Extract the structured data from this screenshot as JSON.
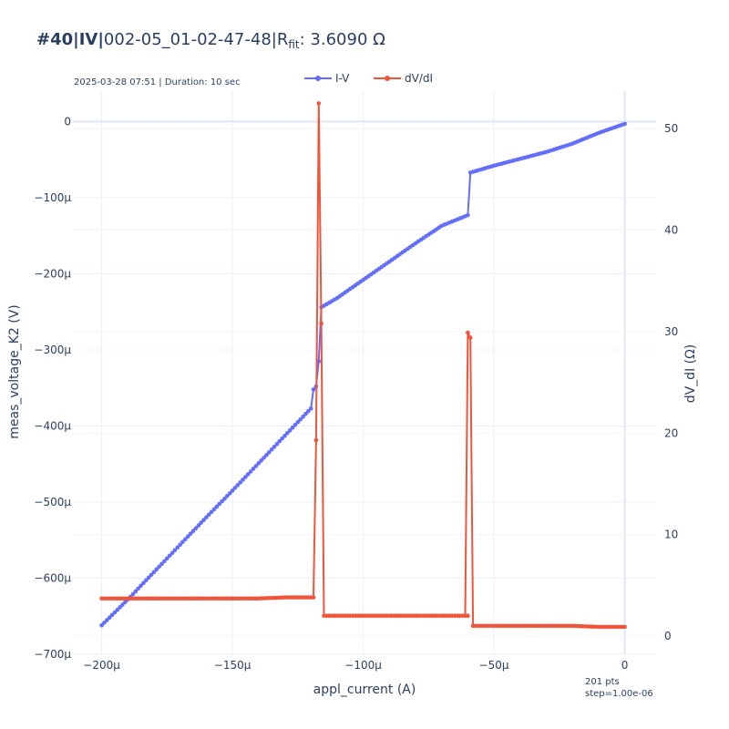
{
  "header": {
    "title_bold": "#40|IV|",
    "title_main": "002-05_01-02-47-48|R",
    "title_sub": "fit",
    "title_tail": ": 3.6090 Ω",
    "subtitle": "2025-03-28 07:51 | Duration: 10 sec",
    "points_note": "201 pts",
    "step_note": "step=1.00e-06"
  },
  "chart_data": {
    "type": "line",
    "xlabel": "appl_current (A)",
    "ylabel_left": "meas_voltage_K2 (V)",
    "ylabel_right": "dV_dI (Ω)",
    "xlim": [
      -0.000211,
      1.2e-05
    ],
    "ylim_left": [
      -0.0007,
      4e-05
    ],
    "ylim_right": [
      -1.8,
      53.7
    ],
    "x_ticks": [
      -0.0002,
      -0.00015,
      -0.0001,
      -5e-05,
      0
    ],
    "x_tick_labels": [
      "−200μ",
      "−150μ",
      "−100μ",
      "−50μ",
      "0"
    ],
    "y_left_ticks": [
      0,
      -0.0001,
      -0.0002,
      -0.0003,
      -0.0004,
      -0.0005,
      -0.0006,
      -0.0007
    ],
    "y_left_tick_labels": [
      "0",
      "−100μ",
      "−200μ",
      "−300μ",
      "−400μ",
      "−500μ",
      "−600μ",
      "−700μ"
    ],
    "y_right_ticks": [
      0,
      10,
      20,
      30,
      40,
      50
    ],
    "y_right_tick_labels": [
      "0",
      "10",
      "20",
      "30",
      "40",
      "50"
    ],
    "grid": true,
    "legend": "top-center",
    "series": [
      {
        "name": "I-V",
        "axis": "left",
        "color": "#636efa",
        "x": [
          -0.0002,
          -0.00019,
          -0.00018,
          -0.00017,
          -0.00016,
          -0.00015,
          -0.00014,
          -0.00013,
          -0.00012,
          -0.000119,
          -0.000118,
          -0.000117,
          -0.000116,
          -0.00011,
          -0.0001,
          -9e-05,
          -8e-05,
          -7e-05,
          -6e-05,
          -5.9e-05,
          -5e-05,
          -4e-05,
          -3e-05,
          -2e-05,
          -1e-05,
          0
        ],
        "values": [
          -0.000662,
          -0.000628,
          -0.000592,
          -0.000556,
          -0.00052,
          -0.000485,
          -0.000449,
          -0.000413,
          -0.000377,
          -0.000352,
          -0.000348,
          -0.000315,
          -0.000244,
          -0.000232,
          -0.000208,
          -0.000184,
          -0.00016,
          -0.000137,
          -0.000123,
          -6.7e-05,
          -5.8e-05,
          -4.9e-05,
          -4e-05,
          -2.9e-05,
          -1.5e-05,
          -3e-06
        ]
      },
      {
        "name": "dV/dI",
        "axis": "right",
        "color": "#ef553b",
        "x": [
          -0.0002,
          -0.00019,
          -0.00018,
          -0.00017,
          -0.00016,
          -0.00015,
          -0.00014,
          -0.00013,
          -0.00012,
          -0.000119,
          -0.000118,
          -0.000117,
          -0.000116,
          -0.000115,
          -0.00011,
          -0.0001,
          -9e-05,
          -8e-05,
          -7e-05,
          -6e-05,
          -6.1e-05,
          -6e-05,
          -5.9e-05,
          -5.8e-05,
          -5e-05,
          -4e-05,
          -3e-05,
          -2e-05,
          -1e-05,
          0
        ],
        "values": [
          3.7,
          3.7,
          3.7,
          3.7,
          3.7,
          3.7,
          3.7,
          3.8,
          3.8,
          3.8,
          19.3,
          52.5,
          30.8,
          2.0,
          2.0,
          2.0,
          2.0,
          2.0,
          2.0,
          2.0,
          2.0,
          29.9,
          29.4,
          1.0,
          1.0,
          1.0,
          1.0,
          1.0,
          0.9,
          0.9
        ]
      }
    ]
  }
}
